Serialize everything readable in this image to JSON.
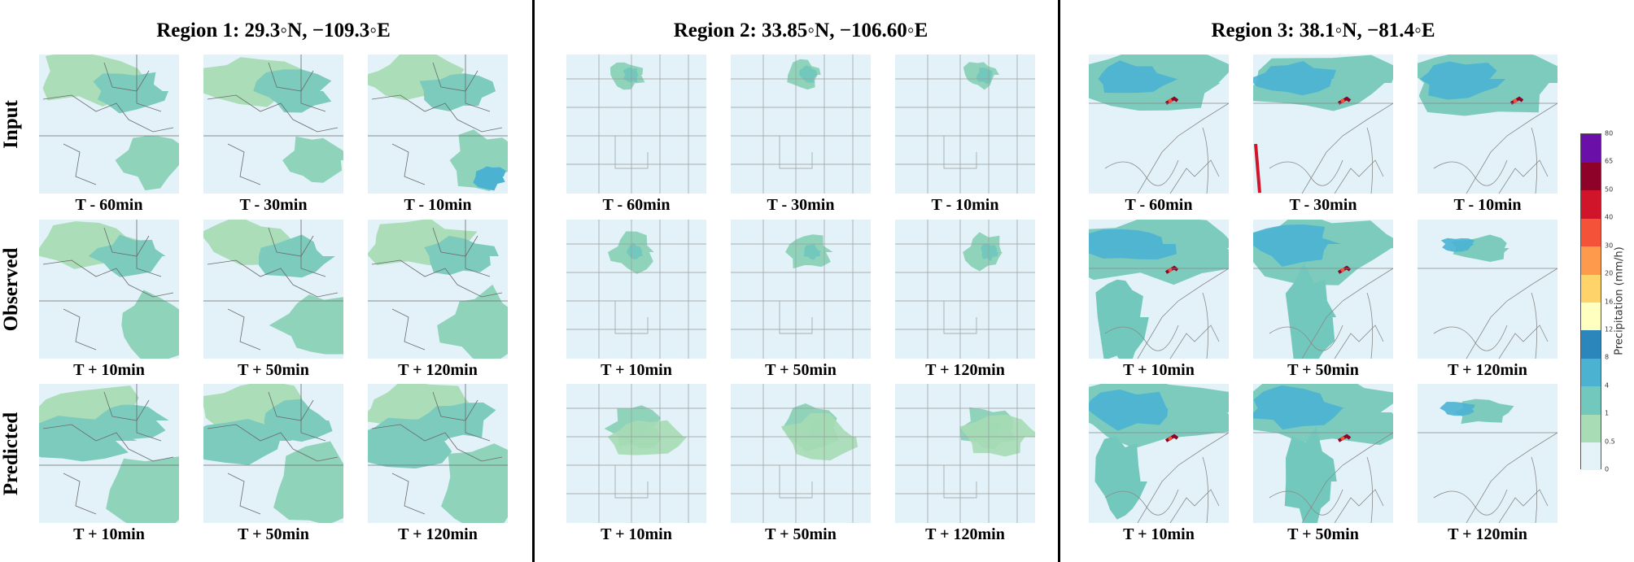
{
  "regions": [
    {
      "title": "Region 1: 29.3◦N, −109.3◦E",
      "style": "r1"
    },
    {
      "title": "Region 2: 33.85◦N, −106.60◦E",
      "style": "r2"
    },
    {
      "title": "Region 3: 38.1◦N, −81.4◦E",
      "style": "r3"
    }
  ],
  "row_labels": [
    "Input",
    "Observed",
    "Predicted"
  ],
  "captions": {
    "input": [
      "T - 60min",
      "T - 30min",
      "T - 10min"
    ],
    "forecast": [
      "T + 10min",
      "T + 50min",
      "T + 120min"
    ]
  },
  "colorbar": {
    "label": "Precipitation (mm/h)",
    "ticks": [
      "0",
      "0.5",
      "1",
      "4",
      "8",
      "12",
      "16",
      "20",
      "30",
      "40",
      "50",
      "65",
      "80"
    ],
    "colors": [
      "#e3f3f8",
      "#a8dcb4",
      "#73c8bd",
      "#4bb2d2",
      "#2b86bc",
      "#ffffbf",
      "#fed36a",
      "#fd9a4c",
      "#f4533a",
      "#d0142a",
      "#8e0128",
      "#6a0fa8"
    ]
  }
}
